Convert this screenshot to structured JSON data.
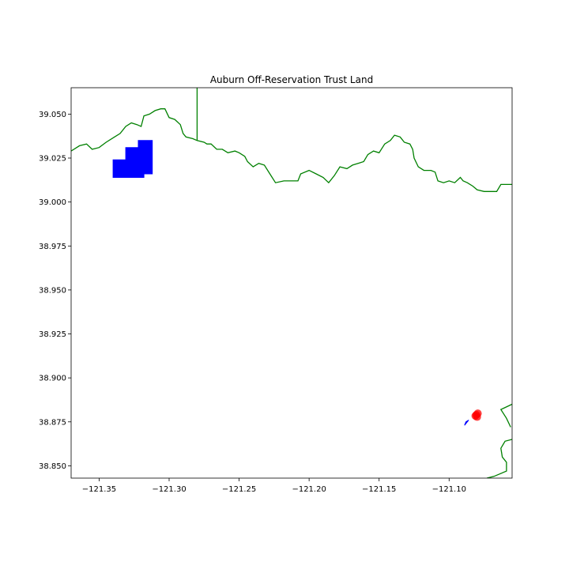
{
  "chart_data": {
    "type": "map",
    "title": "Auburn Off-Reservation Trust Land",
    "xlim": [
      -121.37,
      -121.055
    ],
    "ylim": [
      38.843,
      39.065
    ],
    "x_ticks": [
      {
        "value": -121.35,
        "label": "−121.35"
      },
      {
        "value": -121.3,
        "label": "−121.30"
      },
      {
        "value": -121.25,
        "label": "−121.25"
      },
      {
        "value": -121.2,
        "label": "−121.20"
      },
      {
        "value": -121.15,
        "label": "−121.15"
      },
      {
        "value": -121.1,
        "label": "−121.10"
      }
    ],
    "y_ticks": [
      {
        "value": 38.85,
        "label": "38.850"
      },
      {
        "value": 38.875,
        "label": "38.875"
      },
      {
        "value": 38.9,
        "label": "38.900"
      },
      {
        "value": 38.925,
        "label": "38.925"
      },
      {
        "value": 38.95,
        "label": "38.950"
      },
      {
        "value": 38.975,
        "label": "38.975"
      },
      {
        "value": 39.0,
        "label": "39.000"
      },
      {
        "value": 39.025,
        "label": "39.025"
      },
      {
        "value": 39.05,
        "label": "39.050"
      }
    ],
    "grid": false,
    "colors": {
      "boundary": "#008000",
      "trust_land": "#0000ff",
      "points": "#ff0000"
    },
    "boundaries": [
      {
        "name": "north-boundary",
        "points": [
          [
            -121.37,
            39.029
          ],
          [
            -121.364,
            39.032
          ],
          [
            -121.359,
            39.033
          ],
          [
            -121.355,
            39.03
          ],
          [
            -121.35,
            39.031
          ],
          [
            -121.345,
            39.034
          ],
          [
            -121.339,
            39.037
          ],
          [
            -121.335,
            39.039
          ],
          [
            -121.331,
            39.043
          ],
          [
            -121.327,
            39.045
          ],
          [
            -121.323,
            39.044
          ],
          [
            -121.32,
            39.043
          ],
          [
            -121.318,
            39.049
          ],
          [
            -121.314,
            39.05
          ],
          [
            -121.31,
            39.052
          ],
          [
            -121.306,
            39.053
          ],
          [
            -121.303,
            39.053
          ],
          [
            -121.3,
            39.048
          ],
          [
            -121.296,
            39.047
          ],
          [
            -121.292,
            39.044
          ],
          [
            -121.29,
            39.039
          ],
          [
            -121.288,
            39.037
          ],
          [
            -121.283,
            39.036
          ],
          [
            -121.28,
            39.035
          ],
          [
            -121.275,
            39.034
          ],
          [
            -121.273,
            39.033
          ],
          [
            -121.27,
            39.033
          ],
          [
            -121.266,
            39.03
          ],
          [
            -121.262,
            39.03
          ],
          [
            -121.258,
            39.028
          ],
          [
            -121.253,
            39.029
          ],
          [
            -121.25,
            39.028
          ],
          [
            -121.246,
            39.026
          ],
          [
            -121.244,
            39.023
          ],
          [
            -121.24,
            39.02
          ],
          [
            -121.236,
            39.022
          ],
          [
            -121.232,
            39.021
          ],
          [
            -121.228,
            39.016
          ],
          [
            -121.224,
            39.011
          ],
          [
            -121.218,
            39.012
          ],
          [
            -121.213,
            39.012
          ],
          [
            -121.208,
            39.012
          ],
          [
            -121.206,
            39.016
          ],
          [
            -121.2,
            39.018
          ],
          [
            -121.195,
            39.016
          ],
          [
            -121.19,
            39.014
          ],
          [
            -121.186,
            39.011
          ],
          [
            -121.182,
            39.015
          ],
          [
            -121.178,
            39.02
          ],
          [
            -121.173,
            39.019
          ],
          [
            -121.169,
            39.021
          ],
          [
            -121.165,
            39.022
          ],
          [
            -121.161,
            39.023
          ],
          [
            -121.158,
            39.027
          ],
          [
            -121.154,
            39.029
          ],
          [
            -121.15,
            39.028
          ],
          [
            -121.146,
            39.033
          ],
          [
            -121.142,
            39.035
          ],
          [
            -121.139,
            39.038
          ],
          [
            -121.135,
            39.037
          ],
          [
            -121.132,
            39.034
          ],
          [
            -121.128,
            39.033
          ],
          [
            -121.126,
            39.03
          ],
          [
            -121.125,
            39.025
          ],
          [
            -121.122,
            39.02
          ],
          [
            -121.118,
            39.018
          ],
          [
            -121.113,
            39.018
          ],
          [
            -121.11,
            39.017
          ],
          [
            -121.108,
            39.012
          ],
          [
            -121.104,
            39.011
          ],
          [
            -121.1,
            39.012
          ],
          [
            -121.096,
            39.011
          ],
          [
            -121.092,
            39.014
          ],
          [
            -121.09,
            39.012
          ],
          [
            -121.087,
            39.011
          ],
          [
            -121.083,
            39.009
          ],
          [
            -121.08,
            39.007
          ],
          [
            -121.075,
            39.006
          ],
          [
            -121.07,
            39.006
          ],
          [
            -121.066,
            39.006
          ],
          [
            -121.063,
            39.01
          ],
          [
            -121.059,
            39.01
          ],
          [
            -121.055,
            39.01
          ]
        ]
      },
      {
        "name": "county-line",
        "points": [
          [
            -121.28,
            39.065
          ],
          [
            -121.28,
            39.035
          ]
        ]
      },
      {
        "name": "southeast-boundary-upper",
        "points": [
          [
            -121.055,
            38.885
          ],
          [
            -121.063,
            38.882
          ],
          [
            -121.059,
            38.877
          ],
          [
            -121.056,
            38.872
          ]
        ]
      },
      {
        "name": "southeast-boundary-lower",
        "points": [
          [
            -121.055,
            38.865
          ],
          [
            -121.06,
            38.864
          ],
          [
            -121.063,
            38.86
          ],
          [
            -121.062,
            38.855
          ],
          [
            -121.059,
            38.852
          ],
          [
            -121.059,
            38.847
          ],
          [
            -121.068,
            38.844
          ],
          [
            -121.073,
            38.843
          ]
        ]
      }
    ],
    "trust_land": [
      {
        "name": "trust-land-parcel",
        "points": [
          [
            -121.34,
            39.024
          ],
          [
            -121.331,
            39.024
          ],
          [
            -121.331,
            39.031
          ],
          [
            -121.322,
            39.031
          ],
          [
            -121.322,
            39.035
          ],
          [
            -121.312,
            39.035
          ],
          [
            -121.312,
            39.016
          ],
          [
            -121.318,
            39.016
          ],
          [
            -121.318,
            39.014
          ],
          [
            -121.34,
            39.014
          ]
        ]
      },
      {
        "name": "small-trust-parcel",
        "points": [
          [
            -121.089,
            38.873
          ],
          [
            -121.088,
            38.875
          ],
          [
            -121.086,
            38.876
          ],
          [
            -121.087,
            38.875
          ]
        ]
      }
    ],
    "points": [
      {
        "x": -121.0805,
        "y": 38.879
      },
      {
        "x": -121.0795,
        "y": 38.8798
      },
      {
        "x": -121.0812,
        "y": 38.8784
      },
      {
        "x": -121.08,
        "y": 38.8778
      }
    ]
  }
}
